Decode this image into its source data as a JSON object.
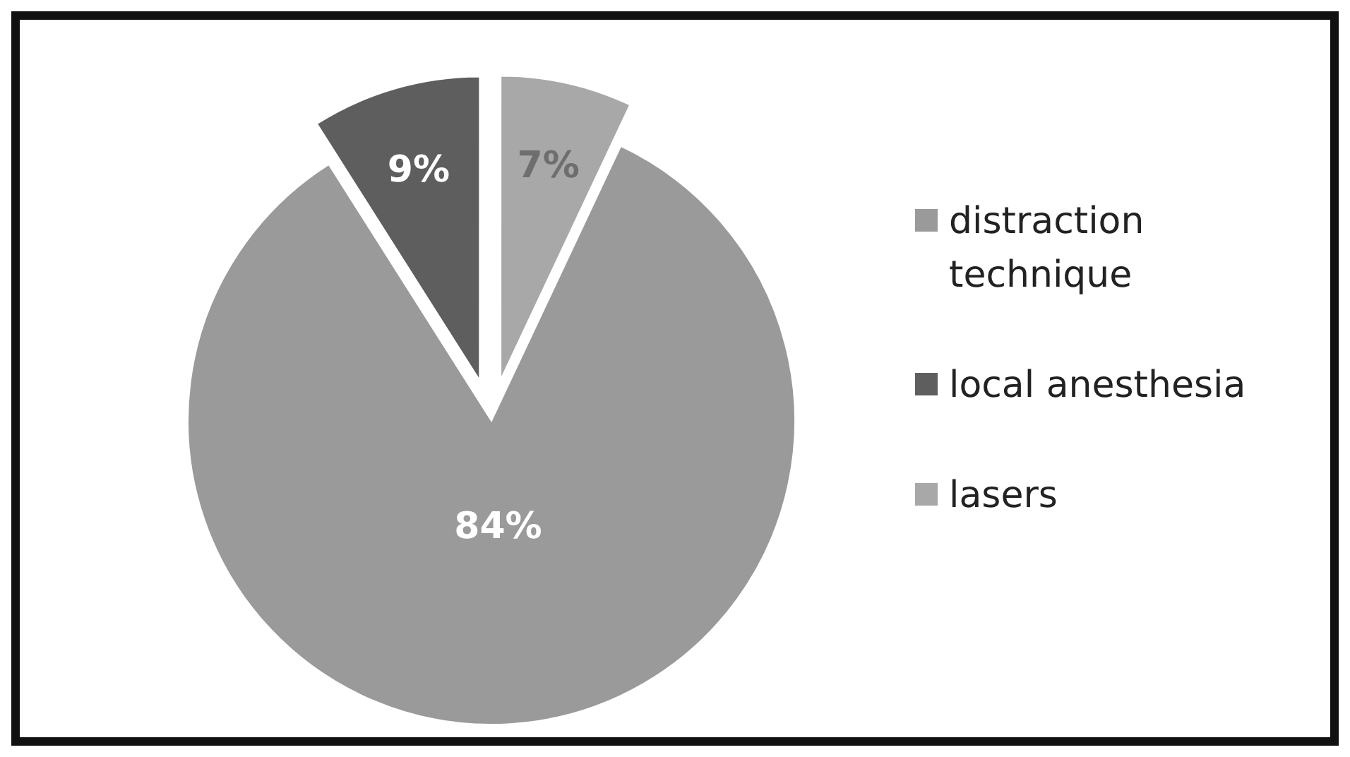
{
  "chart_data": {
    "type": "pie",
    "categories": [
      "distraction technique",
      "local anesthesia",
      "lasers"
    ],
    "values": [
      84,
      9,
      7
    ],
    "colors": [
      "#9a9a9a",
      "#5e5e5e",
      "#a8a8a8"
    ],
    "value_labels": [
      "84%",
      "9%",
      "7%"
    ],
    "legend": "right"
  }
}
